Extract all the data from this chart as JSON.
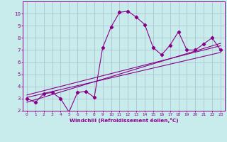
{
  "xlabel": "Windchill (Refroidissement éolien,°C)",
  "background_color": "#c8ecec",
  "line_color": "#880088",
  "grid_color": "#aabbcc",
  "xlim": [
    -0.5,
    23.5
  ],
  "ylim": [
    2,
    11
  ],
  "xticks": [
    0,
    1,
    2,
    3,
    4,
    5,
    6,
    7,
    8,
    9,
    10,
    11,
    12,
    13,
    14,
    15,
    16,
    17,
    18,
    19,
    20,
    21,
    22,
    23
  ],
  "yticks": [
    2,
    3,
    4,
    5,
    6,
    7,
    8,
    9,
    10
  ],
  "main_x": [
    0,
    1,
    2,
    3,
    4,
    5,
    6,
    7,
    8,
    9,
    10,
    11,
    12,
    13,
    14,
    15,
    16,
    17,
    18,
    19,
    20,
    21,
    22,
    23
  ],
  "main_y": [
    3.0,
    2.7,
    3.4,
    3.5,
    3.0,
    1.9,
    3.5,
    3.6,
    3.1,
    7.2,
    8.9,
    10.1,
    10.2,
    9.7,
    9.1,
    7.2,
    6.6,
    7.4,
    8.5,
    7.0,
    7.0,
    7.5,
    8.0,
    7.0
  ],
  "line1_x": [
    0,
    23
  ],
  "line1_y": [
    3.1,
    6.8
  ],
  "line2_x": [
    0,
    23
  ],
  "line2_y": [
    3.3,
    7.35
  ],
  "line3_x": [
    0,
    23
  ],
  "line3_y": [
    2.7,
    7.55
  ]
}
